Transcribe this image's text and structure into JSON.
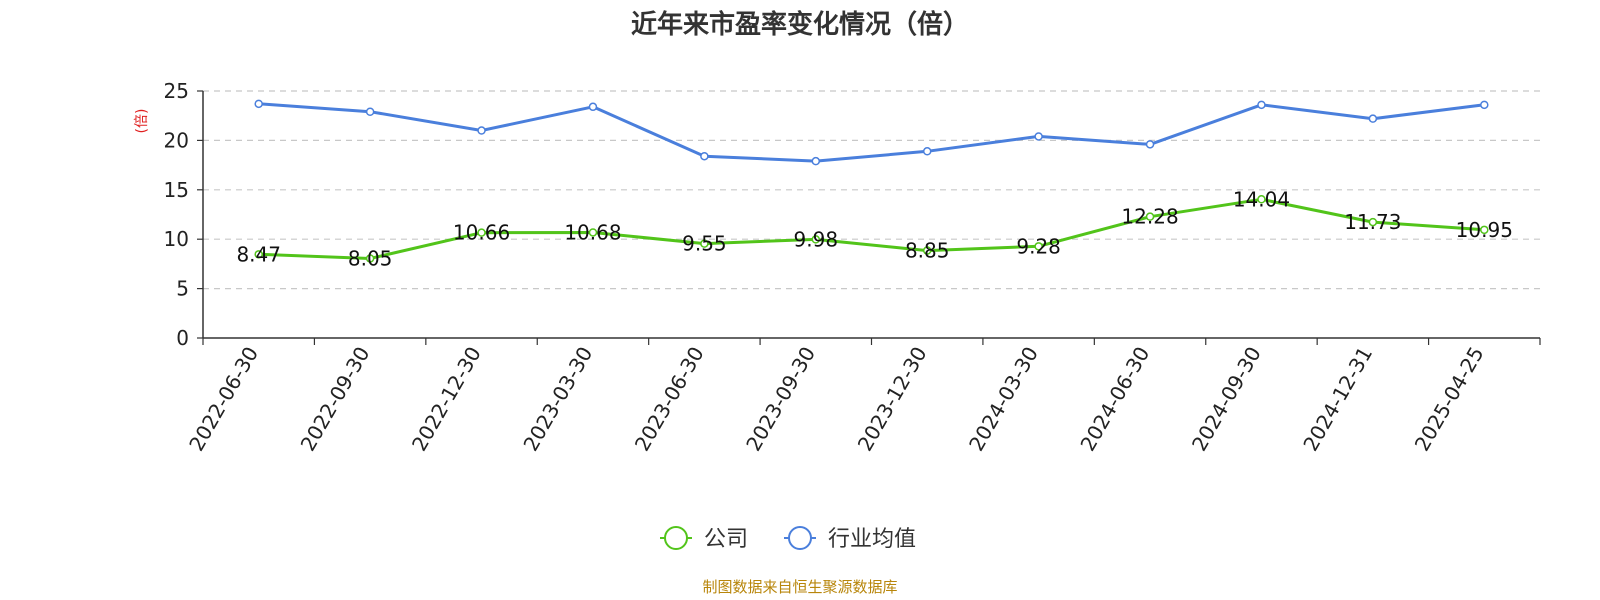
{
  "chart_data": {
    "type": "line",
    "title": "近年来市盈率变化情况（倍）",
    "ylabel": "(倍)",
    "ylim": [
      0,
      25
    ],
    "yticks": [
      0,
      5,
      10,
      15,
      20,
      25
    ],
    "categories": [
      "2022-06-30",
      "2022-09-30",
      "2022-12-30",
      "2023-03-30",
      "2023-06-30",
      "2023-09-30",
      "2023-12-30",
      "2024-03-30",
      "2024-06-30",
      "2024-09-30",
      "2024-12-31",
      "2025-04-25"
    ],
    "series": [
      {
        "name": "公司",
        "color": "#52c41a",
        "values": [
          8.47,
          8.05,
          10.66,
          10.68,
          9.55,
          9.98,
          8.85,
          9.28,
          12.28,
          14.04,
          11.73,
          10.95
        ],
        "labels": [
          "8.47",
          "8.05",
          "10.66",
          "10.68",
          "9.55",
          "9.98",
          "8.85",
          "9.28",
          "12.28",
          "14.04",
          "11.73",
          "10.95"
        ]
      },
      {
        "name": "行业均值",
        "color": "#4a7fdc",
        "values": [
          23.7,
          22.9,
          21.0,
          23.4,
          18.4,
          17.9,
          18.9,
          20.4,
          19.6,
          23.6,
          22.2,
          23.6
        ]
      }
    ],
    "grid": true,
    "legend_position": "bottom-center",
    "source": "制图数据来自恒生聚源数据库",
    "ylabel_color": "#e02020",
    "source_color": "#b8860b"
  }
}
